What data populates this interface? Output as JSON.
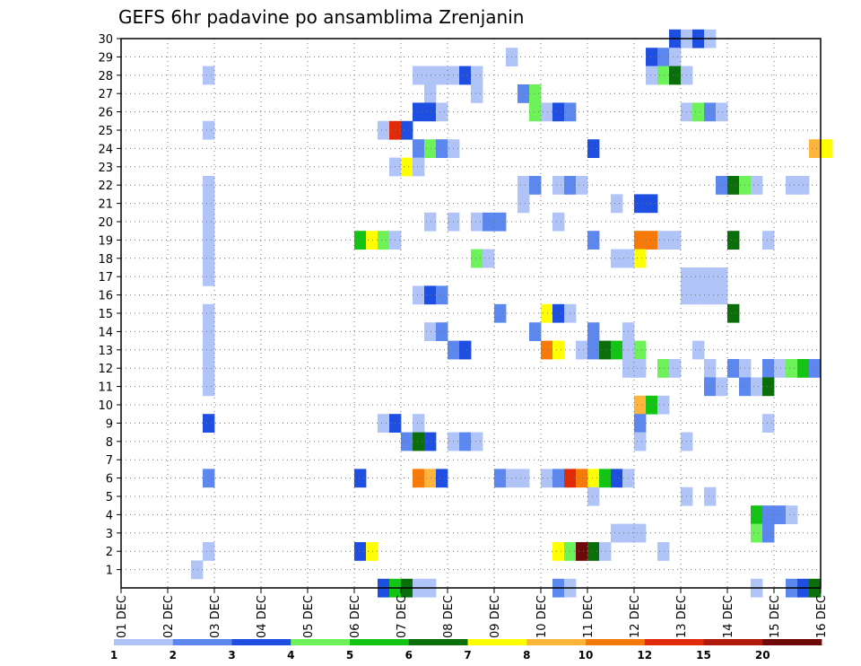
{
  "chart_data": {
    "type": "heatmap",
    "title": "GEFS 6hr padavine po ansamblima Zrenjanin",
    "xlabel": "",
    "ylabel": "",
    "x_tick_labels": [
      "01 DEC",
      "02 DEC",
      "03 DEC",
      "04 DEC",
      "05 DEC",
      "06 DEC",
      "07 DEC",
      "08 DEC",
      "09 DEC",
      "10 DEC",
      "11 DEC",
      "12 DEC",
      "13 DEC",
      "14 DEC",
      "15 DEC",
      "16 DEC"
    ],
    "y_tick_labels": [
      "1",
      "2",
      "3",
      "4",
      "5",
      "6",
      "7",
      "8",
      "9",
      "10",
      "11",
      "12",
      "13",
      "14",
      "15",
      "16",
      "17",
      "18",
      "19",
      "20",
      "21",
      "22",
      "23",
      "24",
      "25",
      "26",
      "27",
      "28",
      "29",
      "30"
    ],
    "x_range_days": [
      1,
      16
    ],
    "x_step_hours": 6,
    "y_range": [
      0,
      30
    ],
    "grid": true,
    "colorbar": {
      "labels": [
        "1",
        "2",
        "3",
        "4",
        "5",
        "6",
        "7",
        "8",
        "10",
        "12",
        "15",
        "20"
      ],
      "colors": [
        "#b0c4f7",
        "#5b87ee",
        "#1f4fe0",
        "#6ef25a",
        "#14c414",
        "#0a6e0a",
        "#ffff00",
        "#ffb43c",
        "#f57a0a",
        "#e02a0a",
        "#b01a0a",
        "#6e0a0a"
      ]
    },
    "cells_desc": "row = ensemble member (0 = control/bottom row), col = 6-hour step index from 01 DEC 00Z, c = color class index into colorbar.colors",
    "cells": [
      [
        30,
        [
          [
            47,
            2
          ],
          [
            48,
            0
          ],
          [
            49,
            2
          ],
          [
            50,
            0
          ]
        ]
      ],
      [
        29,
        [
          [
            33,
            0
          ],
          [
            45,
            2
          ],
          [
            46,
            1
          ],
          [
            47,
            0
          ]
        ]
      ],
      [
        28,
        [
          [
            7,
            0
          ],
          [
            25,
            0
          ],
          [
            26,
            0
          ],
          [
            27,
            0
          ],
          [
            28,
            0
          ],
          [
            29,
            2
          ],
          [
            30,
            0
          ],
          [
            45,
            0
          ],
          [
            46,
            3
          ],
          [
            47,
            5
          ],
          [
            48,
            0
          ]
        ]
      ],
      [
        27,
        [
          [
            26,
            0
          ],
          [
            30,
            0
          ],
          [
            34,
            1
          ],
          [
            35,
            3
          ]
        ]
      ],
      [
        26,
        [
          [
            25,
            2
          ],
          [
            26,
            2
          ],
          [
            27,
            0
          ],
          [
            35,
            3
          ],
          [
            36,
            0
          ],
          [
            37,
            2
          ],
          [
            38,
            1
          ],
          [
            48,
            0
          ],
          [
            49,
            3
          ],
          [
            50,
            1
          ],
          [
            51,
            0
          ]
        ]
      ],
      [
        25,
        [
          [
            7,
            0
          ],
          [
            22,
            0
          ],
          [
            23,
            9
          ],
          [
            24,
            2
          ]
        ]
      ],
      [
        24,
        [
          [
            25,
            1
          ],
          [
            26,
            3
          ],
          [
            27,
            1
          ],
          [
            28,
            0
          ],
          [
            40,
            2
          ],
          [
            59,
            7
          ],
          [
            60,
            6
          ]
        ]
      ],
      [
        23,
        [
          [
            23,
            0
          ],
          [
            24,
            6
          ],
          [
            25,
            0
          ]
        ]
      ],
      [
        22,
        [
          [
            7,
            0
          ],
          [
            34,
            0
          ],
          [
            35,
            1
          ],
          [
            37,
            0
          ],
          [
            38,
            1
          ],
          [
            39,
            0
          ],
          [
            51,
            1
          ],
          [
            52,
            5
          ],
          [
            53,
            3
          ],
          [
            54,
            0
          ],
          [
            57,
            0
          ],
          [
            58,
            0
          ]
        ]
      ],
      [
        21,
        [
          [
            7,
            0
          ],
          [
            34,
            0
          ],
          [
            42,
            0
          ],
          [
            44,
            2
          ],
          [
            45,
            2
          ]
        ]
      ],
      [
        20,
        [
          [
            7,
            0
          ],
          [
            26,
            0
          ],
          [
            28,
            0
          ],
          [
            30,
            0
          ],
          [
            31,
            1
          ],
          [
            32,
            1
          ],
          [
            37,
            0
          ]
        ]
      ],
      [
        19,
        [
          [
            7,
            0
          ],
          [
            20,
            4
          ],
          [
            21,
            6
          ],
          [
            22,
            3
          ],
          [
            23,
            0
          ],
          [
            40,
            1
          ],
          [
            44,
            8
          ],
          [
            45,
            8
          ],
          [
            46,
            0
          ],
          [
            47,
            0
          ],
          [
            52,
            5
          ],
          [
            55,
            0
          ]
        ]
      ],
      [
        18,
        [
          [
            7,
            0
          ],
          [
            30,
            3
          ],
          [
            31,
            0
          ],
          [
            42,
            0
          ],
          [
            43,
            0
          ],
          [
            44,
            6
          ]
        ]
      ],
      [
        17,
        [
          [
            7,
            0
          ],
          [
            48,
            0
          ],
          [
            49,
            0
          ],
          [
            50,
            0
          ],
          [
            51,
            0
          ]
        ]
      ],
      [
        16,
        [
          [
            25,
            0
          ],
          [
            26,
            2
          ],
          [
            27,
            1
          ],
          [
            48,
            0
          ],
          [
            49,
            0
          ],
          [
            50,
            0
          ],
          [
            51,
            0
          ]
        ]
      ],
      [
        15,
        [
          [
            7,
            0
          ],
          [
            32,
            1
          ],
          [
            36,
            6
          ],
          [
            37,
            2
          ],
          [
            38,
            0
          ],
          [
            52,
            5
          ]
        ]
      ],
      [
        14,
        [
          [
            7,
            0
          ],
          [
            26,
            0
          ],
          [
            27,
            1
          ],
          [
            35,
            1
          ],
          [
            40,
            1
          ],
          [
            43,
            0
          ]
        ]
      ],
      [
        13,
        [
          [
            7,
            0
          ],
          [
            28,
            1
          ],
          [
            29,
            2
          ],
          [
            36,
            8
          ],
          [
            37,
            6
          ],
          [
            39,
            0
          ],
          [
            40,
            1
          ],
          [
            41,
            5
          ],
          [
            42,
            4
          ],
          [
            43,
            0
          ],
          [
            44,
            3
          ],
          [
            49,
            0
          ]
        ]
      ],
      [
        12,
        [
          [
            7,
            0
          ],
          [
            43,
            0
          ],
          [
            44,
            0
          ],
          [
            46,
            3
          ],
          [
            47,
            0
          ],
          [
            50,
            0
          ],
          [
            52,
            1
          ],
          [
            53,
            0
          ],
          [
            55,
            1
          ],
          [
            56,
            0
          ],
          [
            57,
            3
          ],
          [
            58,
            4
          ],
          [
            59,
            1
          ]
        ]
      ],
      [
        11,
        [
          [
            7,
            0
          ],
          [
            50,
            1
          ],
          [
            51,
            0
          ],
          [
            53,
            1
          ],
          [
            54,
            0
          ],
          [
            55,
            5
          ]
        ]
      ],
      [
        10,
        [
          [
            44,
            7
          ],
          [
            45,
            4
          ],
          [
            46,
            0
          ]
        ]
      ],
      [
        9,
        [
          [
            7,
            2
          ],
          [
            22,
            0
          ],
          [
            23,
            2
          ],
          [
            25,
            0
          ],
          [
            44,
            1
          ],
          [
            55,
            0
          ]
        ]
      ],
      [
        8,
        [
          [
            24,
            1
          ],
          [
            25,
            5
          ],
          [
            26,
            2
          ],
          [
            28,
            0
          ],
          [
            29,
            1
          ],
          [
            30,
            0
          ],
          [
            44,
            0
          ],
          [
            48,
            0
          ]
        ]
      ],
      [
        6,
        [
          [
            7,
            1
          ],
          [
            20,
            2
          ],
          [
            25,
            8
          ],
          [
            26,
            7
          ],
          [
            27,
            2
          ],
          [
            32,
            1
          ],
          [
            33,
            0
          ],
          [
            34,
            0
          ],
          [
            36,
            0
          ],
          [
            37,
            1
          ],
          [
            38,
            9
          ],
          [
            39,
            8
          ],
          [
            40,
            6
          ],
          [
            41,
            4
          ],
          [
            42,
            2
          ],
          [
            43,
            0
          ]
        ]
      ],
      [
        5,
        [
          [
            40,
            0
          ],
          [
            48,
            0
          ],
          [
            50,
            0
          ]
        ]
      ],
      [
        4,
        [
          [
            54,
            4
          ],
          [
            55,
            1
          ],
          [
            56,
            1
          ],
          [
            57,
            0
          ]
        ]
      ],
      [
        3,
        [
          [
            42,
            0
          ],
          [
            43,
            0
          ],
          [
            44,
            0
          ],
          [
            54,
            3
          ],
          [
            55,
            1
          ]
        ]
      ],
      [
        2,
        [
          [
            7,
            0
          ],
          [
            20,
            2
          ],
          [
            21,
            6
          ],
          [
            37,
            6
          ],
          [
            38,
            3
          ],
          [
            39,
            11
          ],
          [
            40,
            5
          ],
          [
            41,
            0
          ],
          [
            46,
            0
          ]
        ]
      ],
      [
        1,
        [
          [
            6,
            0
          ]
        ]
      ],
      [
        0,
        [
          [
            22,
            2
          ],
          [
            23,
            4
          ],
          [
            24,
            5
          ],
          [
            25,
            0
          ],
          [
            26,
            0
          ],
          [
            37,
            1
          ],
          [
            38,
            0
          ],
          [
            54,
            0
          ],
          [
            57,
            1
          ],
          [
            58,
            2
          ],
          [
            59,
            5
          ]
        ]
      ]
    ]
  }
}
